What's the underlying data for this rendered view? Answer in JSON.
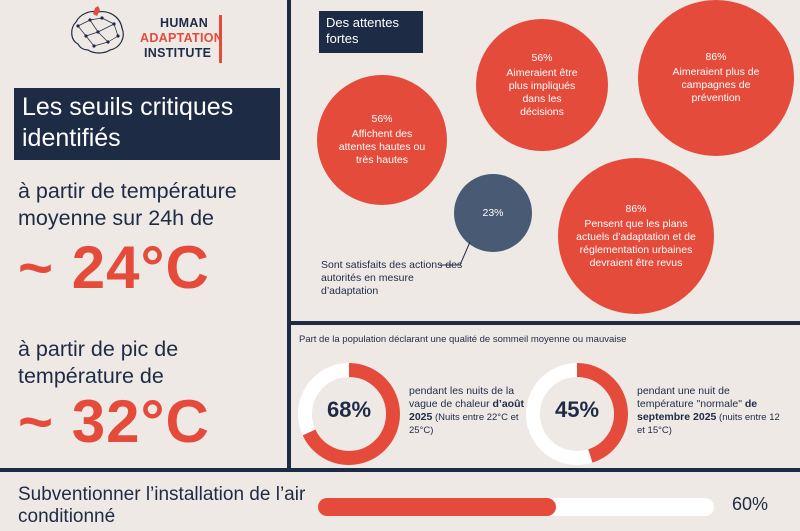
{
  "logo": {
    "line1": "HUMAN",
    "line2": "ADAPTATION",
    "line3": "INSTITUTE"
  },
  "left": {
    "title": "Les seuils critiques identifiés",
    "threshold1_text": "à partir de température moyenne sur 24h de",
    "threshold1_value": "~ 24°C",
    "threshold2_text": "à partir de pic de température de",
    "threshold2_value": "~ 32°C"
  },
  "expectations": {
    "title": "Des attentes fortes",
    "bubbles": [
      {
        "pct": "56%",
        "label": "Affichent des attentes hautes ou très hautes"
      },
      {
        "pct": "56%",
        "label": "Aimeraient être plus impliqués dans les décisions"
      },
      {
        "pct": "86%",
        "label": "Aimeraient plus de campagnes de prévention"
      },
      {
        "pct": "86%",
        "label": "Pensent que les plans actuels d’adaptation et de réglementation urbaines devraient être revus"
      }
    ],
    "satisfied": {
      "pct": "23%",
      "label": "Sont satisfaits des actions des autorités en mesure d’adaptation"
    }
  },
  "sleep": {
    "title": "Part de la population déclarant une qualité de sommeil moyenne ou mauvaise",
    "items": [
      {
        "value": 68,
        "pct": "68%",
        "text_a": "pendant les nuits de la vague de chaleur ",
        "text_b": "d’août 2025",
        "note": " (Nuits entre 22°C et 25°C)"
      },
      {
        "value": 45,
        "pct": "45%",
        "text_a": "pendant une nuit de température \"normale\" ",
        "text_b": "de septembre 2025",
        "note": " (nuits entre 12 et 15°C)"
      }
    ]
  },
  "air_conditioning": {
    "label": "Subventionner l’installation de l’air conditionné",
    "value": 60,
    "value_text": "60%"
  },
  "colors": {
    "navy": "#1d2b44",
    "red": "#e44b3b",
    "slate": "#495a74",
    "background": "#efe9e6"
  }
}
